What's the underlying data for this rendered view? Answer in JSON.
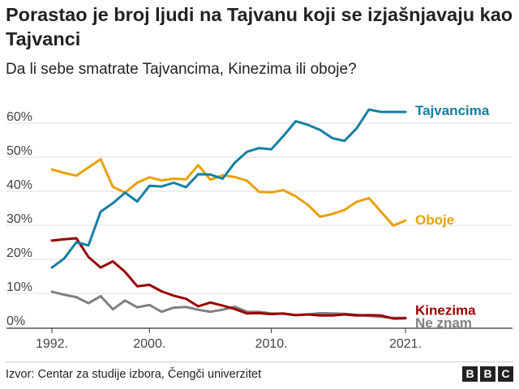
{
  "title": "Porastao je broj ljudi na Tajvanu koji se izjašnjavaju kao Tajvanci",
  "subtitle": "Da li sebe smatrate Tajvancima, Kinezima ili oboje?",
  "source": "Izvor: Centar za studije izbora, Čengči univerzitet",
  "logo": [
    "B",
    "B",
    "C"
  ],
  "chart_data": {
    "type": "line",
    "x": [
      1992,
      1993,
      1994,
      1995,
      1996,
      1997,
      1998,
      1999,
      2000,
      2001,
      2002,
      2003,
      2004,
      2005,
      2006,
      2007,
      2008,
      2009,
      2010,
      2011,
      2012,
      2013,
      2014,
      2015,
      2016,
      2017,
      2018,
      2019,
      2020,
      2021
    ],
    "xticks": [
      {
        "value": 1992,
        "label": "1992."
      },
      {
        "value": 2000,
        "label": "2000."
      },
      {
        "value": 2010,
        "label": "2010."
      },
      {
        "value": 2021,
        "label": "2021."
      }
    ],
    "yticks": [
      {
        "value": 0,
        "label": "0%"
      },
      {
        "value": 10,
        "label": "10%"
      },
      {
        "value": 20,
        "label": "20%"
      },
      {
        "value": 30,
        "label": "30%"
      },
      {
        "value": 40,
        "label": "40%"
      },
      {
        "value": 50,
        "label": "50%"
      },
      {
        "value": 60,
        "label": "60%"
      }
    ],
    "ylim": [
      0,
      65
    ],
    "xlim": [
      1992,
      2021
    ],
    "grid": true,
    "series": [
      {
        "name": "Tajvancima",
        "color": "#1380a1",
        "values": [
          17.6,
          20.2,
          25.0,
          24.1,
          34.0,
          36.5,
          39.6,
          37.0,
          41.6,
          41.4,
          42.5,
          41.2,
          45.0,
          44.9,
          43.7,
          48.4,
          51.6,
          52.7,
          52.3,
          56.3,
          60.6,
          59.5,
          58.0,
          55.6,
          54.8,
          58.5,
          64.0,
          63.3,
          63.3,
          63.3
        ]
      },
      {
        "name": "Oboje",
        "color": "#e8a100",
        "values": [
          46.4,
          45.4,
          44.6,
          47.0,
          49.4,
          41.3,
          39.6,
          42.5,
          44.1,
          43.2,
          43.7,
          43.5,
          47.7,
          43.4,
          44.7,
          44.2,
          43.1,
          39.8,
          39.7,
          40.3,
          38.5,
          36.0,
          32.5,
          33.3,
          34.5,
          36.9,
          38.0,
          34.0,
          29.9,
          31.4
        ]
      },
      {
        "name": "Kinezima",
        "color": "#990000",
        "values": [
          25.5,
          25.9,
          26.2,
          20.7,
          17.6,
          19.4,
          16.3,
          12.1,
          12.5,
          10.6,
          9.3,
          8.4,
          6.2,
          7.3,
          6.4,
          5.4,
          4.1,
          4.2,
          3.9,
          4.1,
          3.6,
          3.8,
          3.5,
          3.5,
          3.8,
          3.5,
          3.6,
          3.5,
          2.6,
          2.7
        ]
      },
      {
        "name": "Ne znam",
        "color": "#808080",
        "values": [
          10.5,
          9.6,
          8.9,
          7.1,
          9.2,
          5.3,
          7.9,
          5.9,
          6.6,
          4.6,
          5.8,
          6.0,
          5.2,
          4.6,
          5.2,
          6.1,
          4.6,
          4.6,
          4.1,
          4.0,
          3.6,
          3.8,
          4.2,
          4.1,
          4.0,
          3.7,
          3.4,
          3.1,
          2.8,
          2.8
        ]
      }
    ]
  }
}
